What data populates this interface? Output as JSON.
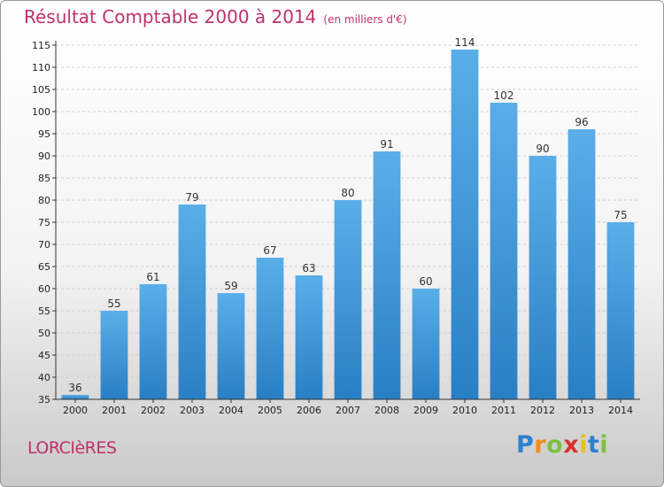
{
  "chart_data": {
    "type": "bar",
    "title": "Résultat Comptable 2000 à 2014",
    "subtitle": "(en milliers d'€)",
    "categories": [
      "2000",
      "2001",
      "2002",
      "2003",
      "2004",
      "2005",
      "2006",
      "2007",
      "2008",
      "2009",
      "2010",
      "2011",
      "2012",
      "2013",
      "2014"
    ],
    "values": [
      36,
      55,
      61,
      79,
      59,
      67,
      63,
      80,
      91,
      60,
      114,
      102,
      90,
      96,
      75
    ],
    "xlabel": "",
    "ylabel": "",
    "ylim": [
      35,
      115
    ],
    "yticks": [
      35,
      40,
      45,
      50,
      55,
      60,
      65,
      70,
      75,
      80,
      85,
      90,
      95,
      100,
      105,
      110,
      115
    ],
    "grid": true,
    "bar_color_top": "#5aaee8",
    "bar_color_bottom": "#2a7fc4"
  },
  "commune": "LORCIèRES",
  "brand": {
    "letters": [
      "P",
      "r",
      "o",
      "x",
      "i",
      "t",
      "i"
    ],
    "colors": [
      "#2f7fd0",
      "#f08a1c",
      "#7cc242",
      "#d6332a",
      "#e8c020",
      "#2f7fd0",
      "#7cc242"
    ]
  }
}
